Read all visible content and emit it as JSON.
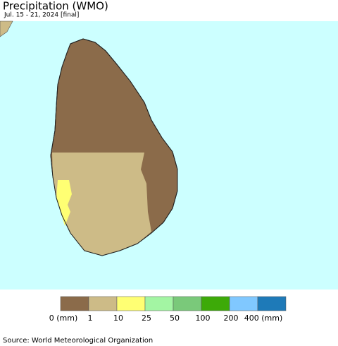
{
  "title": "Precipitation (WMO)",
  "subtitle": "Jul. 15 - 21, 2024 [final]",
  "legend": {
    "colors": [
      "#8b6b4a",
      "#cdbb87",
      "#ffff73",
      "#a3f5a3",
      "#7ac97a",
      "#3daa08",
      "#80c8ff",
      "#1e7ab8"
    ],
    "labels": [
      "0 (mm)",
      "1",
      "10",
      "25",
      "50",
      "100",
      "200",
      "400 (mm)"
    ]
  },
  "source": "Source: World Meteorological Organization"
}
